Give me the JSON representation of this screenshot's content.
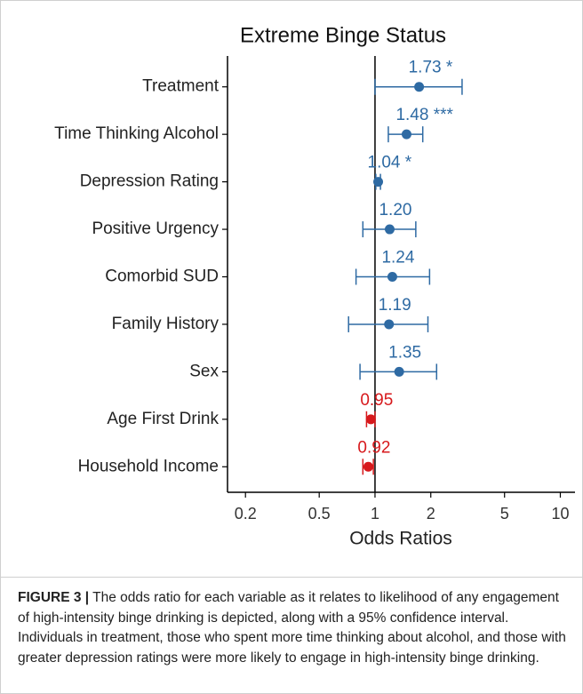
{
  "chart_data": {
    "type": "forest",
    "title": "Extreme Binge Status",
    "x_label": "Odds Ratios",
    "x_log": true,
    "categories": [
      "Treatment",
      "Time Thinking Alcohol",
      "Depression Rating",
      "Positive Urgency",
      "Comorbid SUD",
      "Family History",
      "Sex",
      "Age First Drink",
      "Household Income"
    ],
    "values": [
      1.73,
      1.48,
      1.04,
      1.2,
      1.24,
      1.19,
      1.35,
      0.95,
      0.92
    ],
    "value_labels": [
      "1.73 *",
      "1.48 ***",
      "1.04 *",
      "1.20",
      "1.24",
      "1.19",
      "1.35",
      "0.95",
      "0.92"
    ],
    "lower": [
      1.0,
      1.18,
      1.01,
      0.86,
      0.79,
      0.72,
      0.83,
      0.9,
      0.86
    ],
    "upper": [
      2.95,
      1.81,
      1.07,
      1.66,
      1.97,
      1.93,
      2.15,
      1.0,
      0.98
    ],
    "colors": [
      "#2e6aa3",
      "#2e6aa3",
      "#2e6aa3",
      "#2e6aa3",
      "#2e6aa3",
      "#2e6aa3",
      "#2e6aa3",
      "#d7191c",
      "#d7191c"
    ],
    "ref_line": 1,
    "xlim": [
      0.16,
      12
    ],
    "xticks": [
      0.2,
      0.5,
      1,
      2,
      5,
      10
    ]
  },
  "caption_label": "FIGURE 3 |",
  "caption": "The odds ratio for each variable as it relates to likelihood of any engagement of high-intensity binge drinking is depicted, along with a 95% confidence interval. Individuals in treatment, those who spent more time thinking about alcohol, and those with greater depression ratings were more likely to engage in high-intensity binge drinking."
}
